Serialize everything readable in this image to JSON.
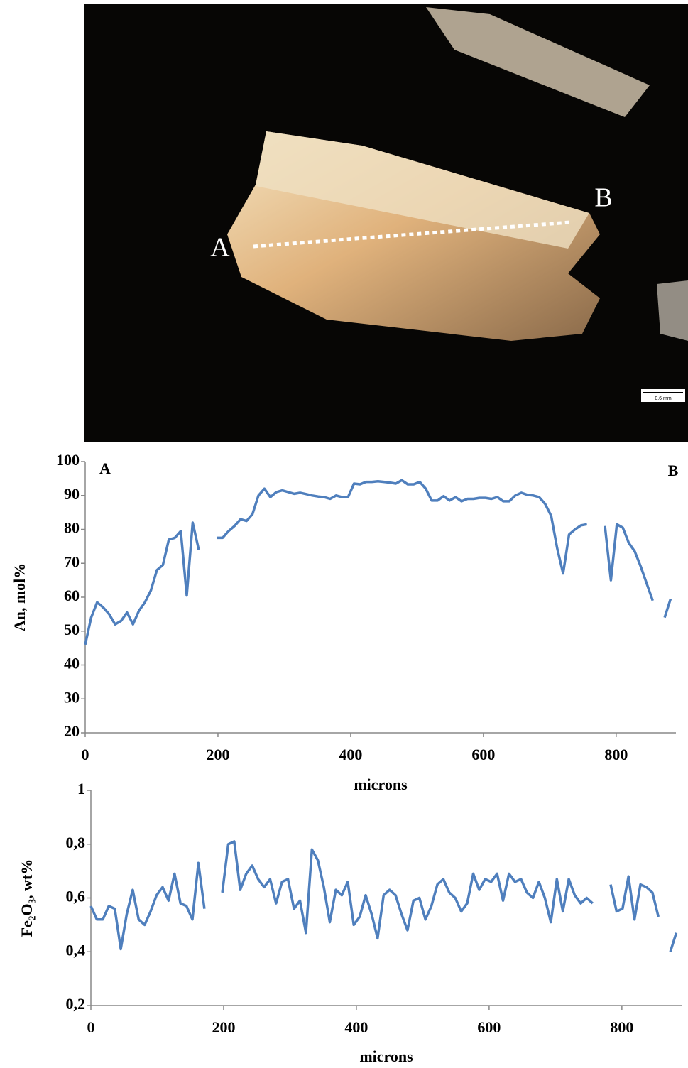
{
  "image": {
    "labels": [
      "A",
      "B"
    ],
    "scale": "0.6 mm"
  },
  "chart_data": [
    {
      "type": "line",
      "ylabel": "An, mol%",
      "xlabel": "microns",
      "annotations": [
        "A",
        "B"
      ],
      "color": "#4f7fbd",
      "xlim": [
        0,
        890
      ],
      "xticks": [
        0,
        200,
        400,
        600,
        800
      ],
      "ylim": [
        20,
        100
      ],
      "yticks": [
        20,
        30,
        40,
        50,
        60,
        70,
        80,
        90,
        100
      ],
      "x": [
        0,
        9,
        18,
        27,
        36,
        45,
        54,
        63,
        72,
        81,
        90,
        99,
        108,
        117,
        126,
        135,
        144,
        153,
        162,
        171,
        180,
        189,
        198,
        207,
        216,
        225,
        234,
        243,
        252,
        261,
        270,
        279,
        288,
        297,
        306,
        315,
        324,
        333,
        342,
        351,
        360,
        369,
        378,
        387,
        396,
        405,
        414,
        423,
        432,
        441,
        450,
        459,
        468,
        477,
        486,
        495,
        504,
        513,
        522,
        531,
        540,
        549,
        558,
        567,
        576,
        585,
        594,
        603,
        612,
        621,
        630,
        639,
        648,
        657,
        666,
        675,
        684,
        693,
        702,
        711,
        720,
        729,
        738,
        747,
        756,
        765,
        774,
        783,
        792,
        801,
        810,
        819,
        828,
        837,
        846,
        855,
        864,
        873,
        882
      ],
      "values": [
        46,
        54,
        58.5,
        57,
        55,
        52,
        53,
        55.5,
        52,
        56,
        58.5,
        62,
        68,
        69.5,
        77,
        77.5,
        79.5,
        60.5,
        82,
        74,
        null,
        null,
        77.5,
        77.5,
        79.5,
        81,
        83,
        82.5,
        84.5,
        90,
        92,
        89.5,
        91,
        91.5,
        91,
        90.5,
        90.8,
        90.4,
        90,
        89.7,
        89.5,
        89,
        90,
        89.5,
        89.5,
        93.5,
        93.3,
        94,
        94,
        94.2,
        94,
        93.8,
        93.5,
        94.5,
        93.3,
        93.3,
        94,
        92,
        88.5,
        88.5,
        89.8,
        88.5,
        89.5,
        88.3,
        89,
        89,
        89.3,
        89.3,
        89,
        89.5,
        88.3,
        88.3,
        90,
        90.8,
        90.2,
        90,
        89.5,
        87.5,
        84,
        74.5,
        67,
        78.5,
        80,
        81.2,
        81.5,
        null,
        null,
        81,
        65,
        81.5,
        80.5,
        76,
        73.5,
        69,
        64,
        59,
        null,
        54,
        59.5
      ]
    },
    {
      "type": "line",
      "ylabel": "Fe₂O₃, wt%",
      "xlabel": "microns",
      "color": "#4f7fbd",
      "xlim": [
        0,
        890
      ],
      "xticks": [
        0,
        200,
        400,
        600,
        800
      ],
      "ylim": [
        0.2,
        1
      ],
      "yticks": [
        {
          "value": 0.2,
          "label": "0,2"
        },
        {
          "value": 0.4,
          "label": "0,4"
        },
        {
          "value": 0.6,
          "label": "0,6"
        },
        {
          "value": 0.8,
          "label": "0,8"
        },
        1
      ],
      "x": [
        0,
        9,
        18,
        27,
        36,
        45,
        54,
        63,
        72,
        81,
        90,
        99,
        108,
        117,
        126,
        135,
        144,
        153,
        162,
        171,
        180,
        189,
        198,
        207,
        216,
        225,
        234,
        243,
        252,
        261,
        270,
        279,
        288,
        297,
        306,
        315,
        324,
        333,
        342,
        351,
        360,
        369,
        378,
        387,
        396,
        405,
        414,
        423,
        432,
        441,
        450,
        459,
        468,
        477,
        486,
        495,
        504,
        513,
        522,
        531,
        540,
        549,
        558,
        567,
        576,
        585,
        594,
        603,
        612,
        621,
        630,
        639,
        648,
        657,
        666,
        675,
        684,
        693,
        702,
        711,
        720,
        729,
        738,
        747,
        756,
        765,
        774,
        783,
        792,
        801,
        810,
        819,
        828,
        837,
        846,
        855,
        864,
        873,
        882
      ],
      "values": [
        0.57,
        0.52,
        0.52,
        0.57,
        0.56,
        0.41,
        0.54,
        0.63,
        0.52,
        0.5,
        0.55,
        0.61,
        0.64,
        0.59,
        0.69,
        0.58,
        0.57,
        0.52,
        0.73,
        0.56,
        null,
        null,
        0.62,
        0.8,
        0.81,
        0.63,
        0.69,
        0.72,
        0.67,
        0.64,
        0.67,
        0.58,
        0.66,
        0.67,
        0.56,
        0.59,
        0.47,
        0.78,
        0.74,
        0.64,
        0.51,
        0.63,
        0.61,
        0.66,
        0.5,
        0.53,
        0.61,
        0.54,
        0.45,
        0.61,
        0.63,
        0.61,
        0.54,
        0.48,
        0.59,
        0.6,
        0.52,
        0.57,
        0.65,
        0.67,
        0.62,
        0.6,
        0.55,
        0.58,
        0.69,
        0.63,
        0.67,
        0.66,
        0.69,
        0.59,
        0.69,
        0.66,
        0.67,
        0.62,
        0.6,
        0.66,
        0.6,
        0.51,
        0.67,
        0.55,
        0.67,
        0.61,
        0.58,
        0.6,
        0.58,
        null,
        null,
        0.65,
        0.55,
        0.56,
        0.68,
        0.52,
        0.65,
        0.64,
        0.62,
        0.53,
        null,
        0.4,
        0.47
      ]
    }
  ]
}
